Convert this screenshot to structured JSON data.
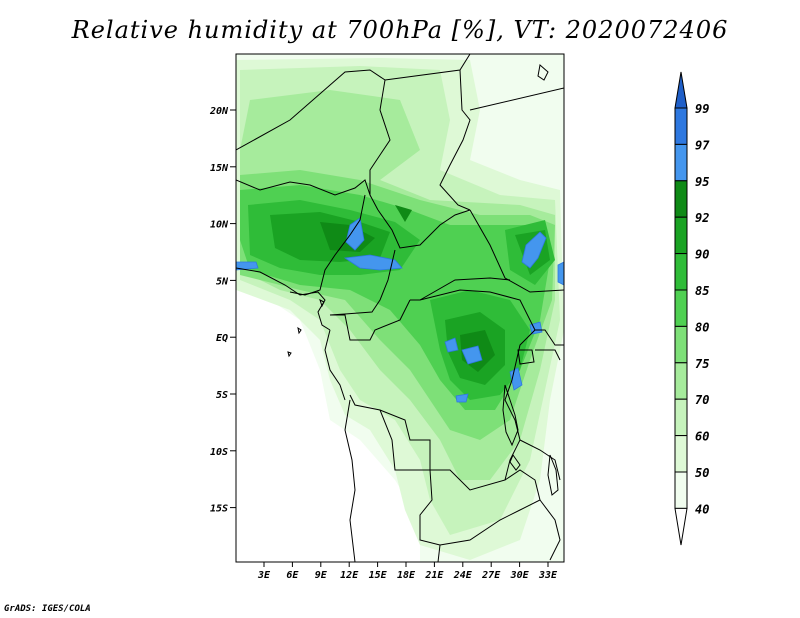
{
  "title": "Relative humidity at 700hPa [%], VT: 2020072406",
  "credit": "GrADS: IGES/COLA",
  "map": {
    "lat_ticks": [
      "20N",
      "15N",
      "10N",
      "5N",
      "EQ",
      "5S",
      "10S",
      "15S"
    ],
    "lon_ticks": [
      "3E",
      "6E",
      "9E",
      "12E",
      "15E",
      "18E",
      "21E",
      "24E",
      "27E",
      "30E",
      "33E"
    ]
  },
  "colorbar": {
    "labels": [
      "99",
      "97",
      "95",
      "92",
      "90",
      "85",
      "80",
      "75",
      "70",
      "60",
      "50",
      "40"
    ],
    "colors": {
      "99": "#1f5fc8",
      "97": "#2e78e0",
      "95": "#4496ee",
      "92": "#0f8a16",
      "90": "#1aa323",
      "85": "#2fbc38",
      "80": "#4fd052",
      "75": "#7ee078",
      "70": "#a6eb9c",
      "60": "#c6f3bc",
      "50": "#def9d6",
      "40": "#f1fdef"
    }
  }
}
